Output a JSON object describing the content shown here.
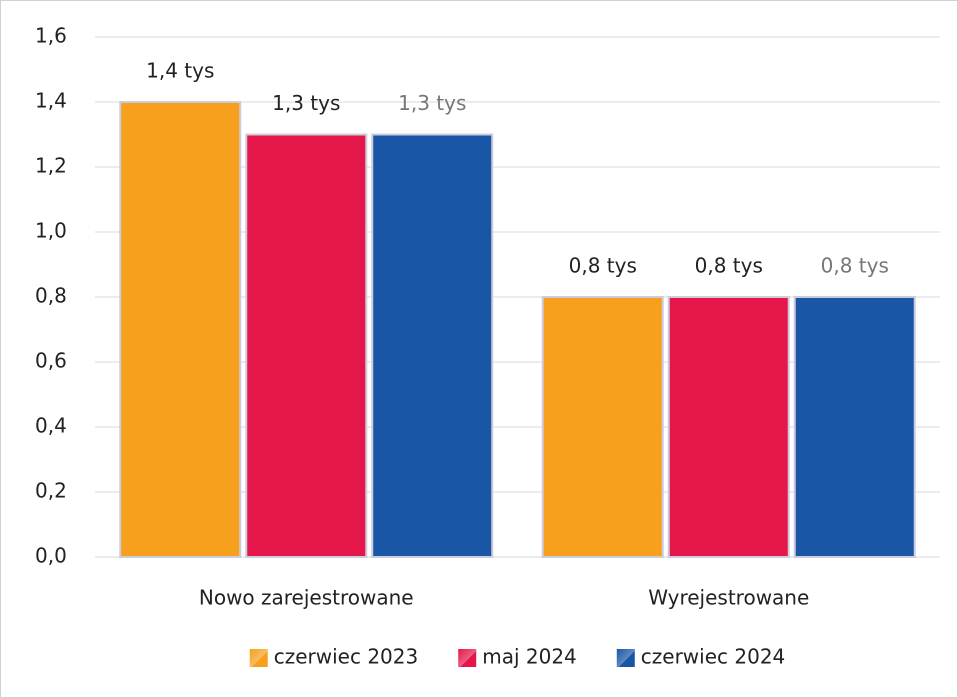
{
  "chart_data": {
    "type": "bar",
    "categories": [
      "Nowo zarejestrowane",
      "Wyrejestrowane"
    ],
    "series": [
      {
        "name": "czerwiec 2023",
        "color": "#f7a01e",
        "label_color": "#222222",
        "values": [
          1.4,
          0.8
        ],
        "value_labels": [
          "1,4 tys",
          "0,8 tys"
        ]
      },
      {
        "name": "maj 2024",
        "color": "#e5174a",
        "label_color": "#222222",
        "values": [
          1.3,
          0.8
        ],
        "value_labels": [
          "1,3 tys",
          "0,8 tys"
        ]
      },
      {
        "name": "czerwiec 2024",
        "color": "#1a56a6",
        "label_color": "#777777",
        "values": [
          1.3,
          0.8
        ],
        "value_labels": [
          "1,3 tys",
          "0,8 tys"
        ]
      }
    ],
    "ylim": [
      0,
      1.6
    ],
    "yticks": [
      {
        "value": 0,
        "label": "0,0"
      },
      {
        "value": 0.2,
        "label": "0,2"
      },
      {
        "value": 0.4,
        "label": "0,4"
      },
      {
        "value": 0.6,
        "label": "0,6"
      },
      {
        "value": 0.8,
        "label": "0,8"
      },
      {
        "value": 1.0,
        "label": "1,0"
      },
      {
        "value": 1.2,
        "label": "1,2"
      },
      {
        "value": 1.4,
        "label": "1,4"
      },
      {
        "value": 1.6,
        "label": "1,6"
      }
    ],
    "grid": true,
    "legend": "bottom"
  }
}
